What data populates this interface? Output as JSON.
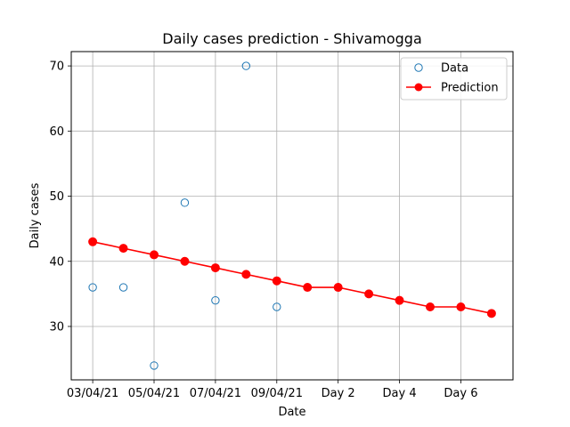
{
  "chart_data": {
    "type": "line",
    "title": "Daily cases prediction - Shivamogga",
    "xlabel": "Date",
    "ylabel": "Daily cases",
    "x_tick_labels": [
      "03/04/21",
      "05/04/21",
      "07/04/21",
      "09/04/21",
      "Day 2",
      "Day 4",
      "Day 6"
    ],
    "x_tick_index": [
      0,
      2,
      4,
      6,
      8,
      10,
      12
    ],
    "xlim": [
      -0.7,
      13.7
    ],
    "ylim": [
      21.8,
      72.2
    ],
    "y_ticks": [
      30,
      40,
      50,
      60,
      70
    ],
    "grid": true,
    "legend_position": "top-right",
    "series": [
      {
        "name": "Data",
        "style": "markers-hollow",
        "color": "#1f77b4",
        "x": [
          0,
          1,
          2,
          3,
          4,
          5,
          6
        ],
        "values": [
          36,
          36,
          24,
          49,
          34,
          70,
          33
        ]
      },
      {
        "name": "Prediction",
        "style": "line-markers",
        "color": "#ff0000",
        "x": [
          0,
          1,
          2,
          3,
          4,
          5,
          6,
          7,
          8,
          9,
          10,
          11,
          12,
          13
        ],
        "values": [
          43,
          42,
          41,
          40,
          39,
          38,
          37,
          36,
          36,
          35,
          34,
          33,
          33,
          32
        ]
      }
    ]
  }
}
